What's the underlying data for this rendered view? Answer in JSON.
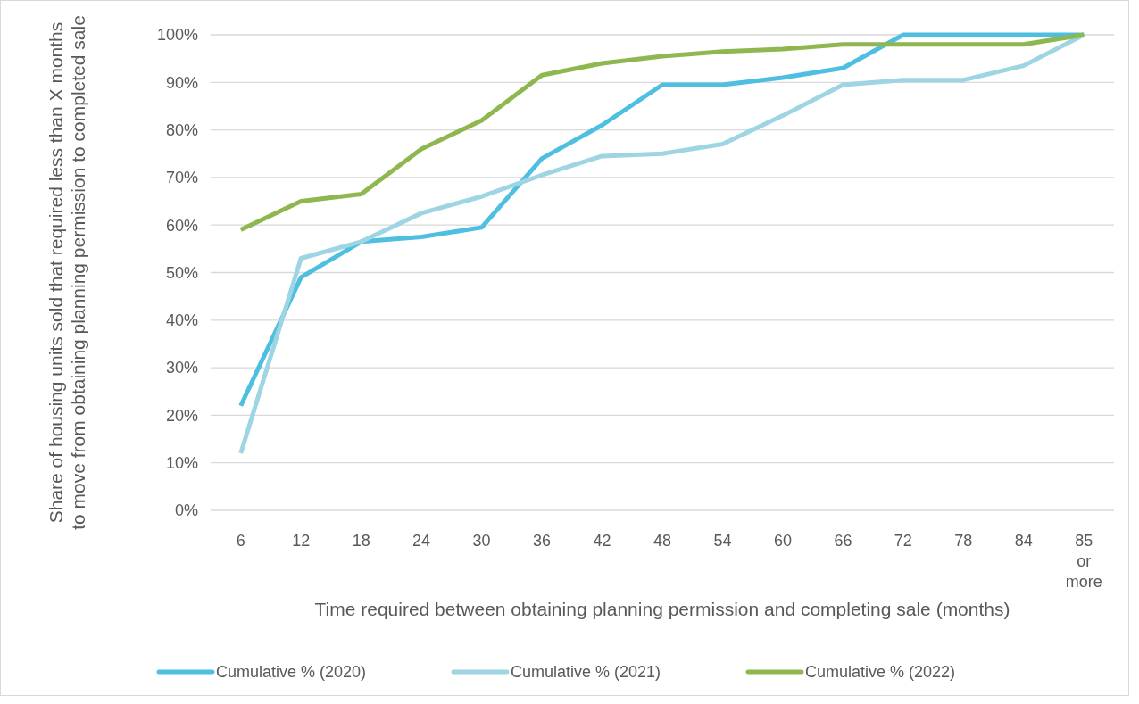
{
  "chart_data": {
    "type": "line",
    "xlabel": "Time required between obtaining planning permission and completing sale (months)",
    "ylabel": "Share of housing units sold that required less than X months to move from obtaining planning permission to completed sale",
    "categories": [
      "6",
      "12",
      "18",
      "24",
      "30",
      "36",
      "42",
      "48",
      "54",
      "60",
      "66",
      "72",
      "78",
      "84",
      "85 or more"
    ],
    "series": [
      {
        "name": "Cumulative % (2020)",
        "color": "#4ebfe0",
        "values": [
          22,
          49,
          56.5,
          57.5,
          59.5,
          74,
          81,
          89.5,
          89.5,
          91,
          93,
          100,
          100,
          100,
          100
        ]
      },
      {
        "name": "Cumulative % (2021)",
        "color": "#9ed5e3",
        "values": [
          12,
          53,
          56.5,
          62.5,
          66,
          70.5,
          74.5,
          75,
          77,
          83,
          89.5,
          90.5,
          90.5,
          93.5,
          100
        ]
      },
      {
        "name": "Cumulative % (2022)",
        "color": "#8fb74f",
        "values": [
          59,
          65,
          66.5,
          76,
          82,
          91.5,
          94,
          95.5,
          96.5,
          97,
          98,
          98,
          98,
          98,
          100
        ]
      }
    ],
    "ylim": [
      0,
      100
    ],
    "yticks": [
      {
        "value": 0,
        "label": "0%"
      },
      {
        "value": 10,
        "label": "10%"
      },
      {
        "value": 20,
        "label": "20%"
      },
      {
        "value": 30,
        "label": "30%"
      },
      {
        "value": 40,
        "label": "40%"
      },
      {
        "value": 50,
        "label": "50%"
      },
      {
        "value": 60,
        "label": "60%"
      },
      {
        "value": 70,
        "label": "70%"
      },
      {
        "value": 80,
        "label": "80%"
      },
      {
        "value": 90,
        "label": "90%"
      },
      {
        "value": 100,
        "label": "100%"
      }
    ],
    "grid": "y",
    "legend": "bottom",
    "marker": "none",
    "line_style": "solid"
  }
}
